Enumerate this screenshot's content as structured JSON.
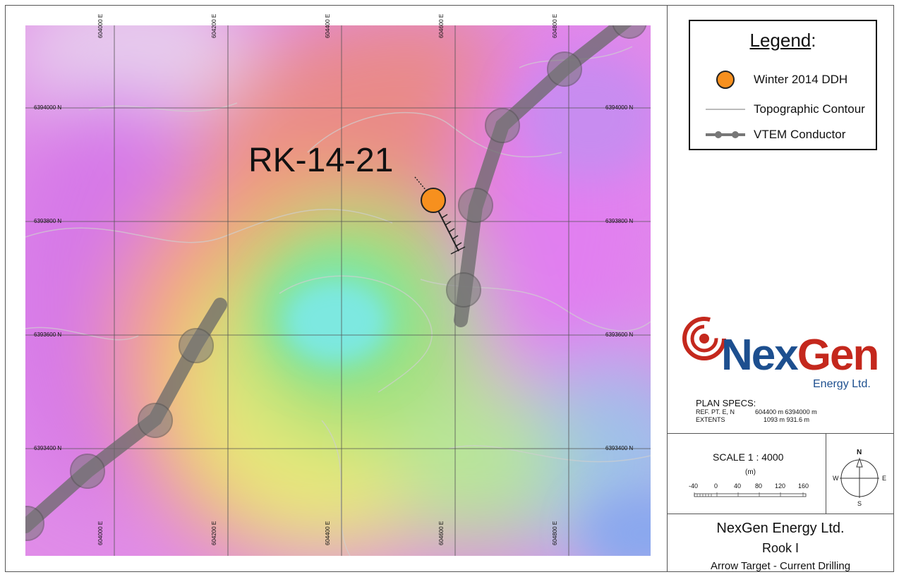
{
  "map": {
    "drillhole_label": "RK-14-21",
    "easting_labels": [
      "604000 E",
      "604200 E",
      "604400 E",
      "604600 E",
      "604800 E"
    ],
    "northing_labels": [
      "6394000 N",
      "6393800 N",
      "6393600 N",
      "6393400 N"
    ],
    "colors": {
      "drillhole": "#f7901e",
      "conductor": "#6a6a6a"
    }
  },
  "legend": {
    "title": "Legend",
    "title_suffix": ":",
    "items": [
      {
        "label": "Winter 2014 DDH",
        "icon": "orange-circle-icon"
      },
      {
        "label": "Topographic Contour",
        "icon": "contour-line-icon"
      },
      {
        "label": "VTEM Conductor",
        "icon": "conductor-line-icon"
      }
    ]
  },
  "logo": {
    "name_part1": "Nex",
    "name_part2": "Gen",
    "subtitle": "Energy Ltd.",
    "colors": {
      "blue": "#1d4f8f",
      "red": "#c4281d"
    }
  },
  "plan_specs": {
    "heading": "PLAN  SPECS:",
    "ref_label": "REF. PT.  E, N",
    "ref_value": "604400 m 6394000 m",
    "extents_label": "EXTENTS",
    "extents_value": "1093 m    931.6 m"
  },
  "scale": {
    "title": "SCALE  1 : 4000",
    "unit": "(m)",
    "ticks": [
      "-40",
      "0",
      "40",
      "80",
      "120",
      "160"
    ]
  },
  "compass": {
    "n": "N",
    "s": "S",
    "e": "E",
    "w": "W"
  },
  "title_block": {
    "company": "NexGen Energy Ltd.",
    "project": "Rook I",
    "subtitle": "Arrow Target - Current Drilling"
  }
}
